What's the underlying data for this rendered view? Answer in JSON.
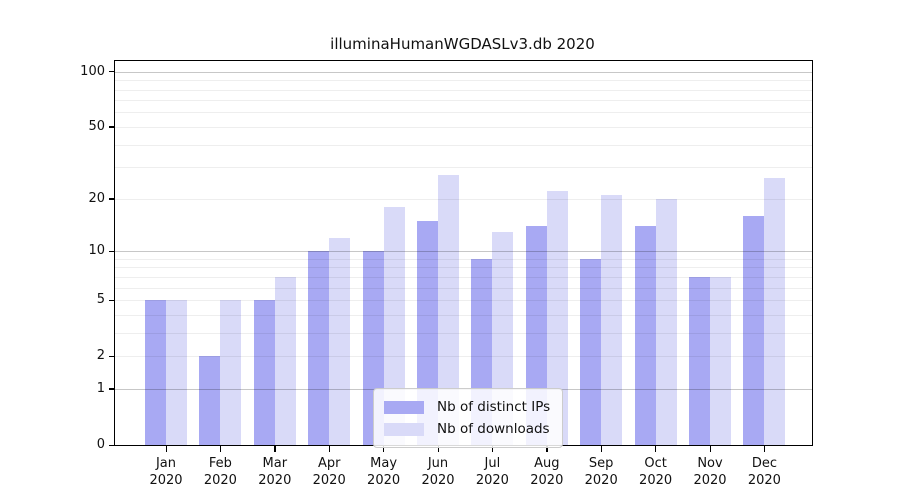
{
  "chart_data": {
    "type": "bar",
    "title": "illuminaHumanWGDASLv3.db 2020",
    "xlabel": "",
    "ylabel": "",
    "categories": [
      "Jan 2020",
      "Feb 2020",
      "Mar 2020",
      "Apr 2020",
      "May 2020",
      "Jun 2020",
      "Jul 2020",
      "Aug 2020",
      "Sep 2020",
      "Oct 2020",
      "Nov 2020",
      "Dec 2020"
    ],
    "series": [
      {
        "name": "Nb of distinct IPs",
        "color": "#a8a9f3",
        "values": [
          5,
          2,
          5,
          10,
          10,
          15,
          9,
          14,
          9,
          14,
          7,
          16
        ]
      },
      {
        "name": "Nb of downloads",
        "color": "#d9daf8",
        "values": [
          5,
          5,
          7,
          12,
          18,
          27,
          13,
          22,
          21,
          20,
          7,
          26
        ]
      }
    ],
    "y_scale": "log1p",
    "ylim": [
      0,
      100
    ],
    "yticks": [
      0,
      1,
      2,
      5,
      10,
      20,
      50,
      100
    ],
    "major_gridlines": [
      1,
      10,
      100
    ],
    "minor_gridlines": [
      2,
      3,
      4,
      5,
      6,
      7,
      8,
      9,
      20,
      30,
      40,
      50,
      60,
      70,
      80,
      90
    ],
    "grid": "on",
    "legend_position": "lower center inside",
    "colors": {
      "axis": "#000000",
      "text": "#111111",
      "bar_distinct_ips": "#a8a9f3",
      "bar_downloads": "#d9daf8",
      "legend_border": "#cccccc"
    }
  }
}
